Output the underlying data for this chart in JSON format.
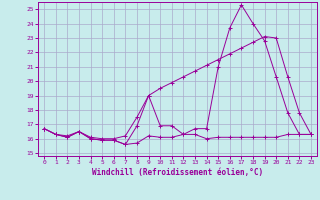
{
  "background_color": "#c8ecec",
  "grid_color": "#aaaacc",
  "line_color": "#990099",
  "xlabel": "Windchill (Refroidissement éolien,°C)",
  "ylim": [
    14.8,
    25.5
  ],
  "xlim": [
    -0.5,
    23.5
  ],
  "yticks": [
    15,
    16,
    17,
    18,
    19,
    20,
    21,
    22,
    23,
    24,
    25
  ],
  "xticks": [
    0,
    1,
    2,
    3,
    4,
    5,
    6,
    7,
    8,
    9,
    10,
    11,
    12,
    13,
    14,
    15,
    16,
    17,
    18,
    19,
    20,
    21,
    22,
    23
  ],
  "line1_x": [
    0,
    1,
    2,
    3,
    4,
    5,
    6,
    7,
    8,
    9,
    10,
    11,
    12,
    13,
    14,
    15,
    16,
    17,
    18,
    19,
    20,
    21,
    22,
    23
  ],
  "line1_y": [
    16.7,
    16.3,
    16.1,
    16.5,
    16.0,
    15.9,
    15.9,
    15.6,
    15.7,
    16.2,
    16.1,
    16.1,
    16.3,
    16.3,
    16.0,
    16.1,
    16.1,
    16.1,
    16.1,
    16.1,
    16.1,
    16.3,
    16.3,
    16.3
  ],
  "line2_x": [
    0,
    1,
    2,
    3,
    4,
    5,
    6,
    7,
    8,
    9,
    10,
    11,
    12,
    13,
    14,
    15,
    16,
    17,
    18,
    19,
    20,
    21,
    22,
    23
  ],
  "line2_y": [
    16.7,
    16.3,
    16.1,
    16.5,
    16.0,
    15.9,
    15.9,
    15.6,
    16.9,
    19.0,
    16.9,
    16.9,
    16.3,
    16.7,
    16.7,
    21.0,
    23.7,
    25.3,
    24.0,
    22.8,
    20.3,
    17.8,
    16.3,
    16.3
  ],
  "line3_x": [
    0,
    1,
    2,
    3,
    4,
    5,
    6,
    7,
    8,
    9,
    10,
    11,
    12,
    13,
    14,
    15,
    16,
    17,
    18,
    19,
    20,
    21,
    22,
    23
  ],
  "line3_y": [
    16.7,
    16.3,
    16.2,
    16.5,
    16.1,
    16.0,
    16.0,
    16.2,
    17.5,
    19.0,
    19.5,
    19.9,
    20.3,
    20.7,
    21.1,
    21.5,
    21.9,
    22.3,
    22.7,
    23.1,
    23.0,
    20.3,
    17.8,
    16.3
  ]
}
